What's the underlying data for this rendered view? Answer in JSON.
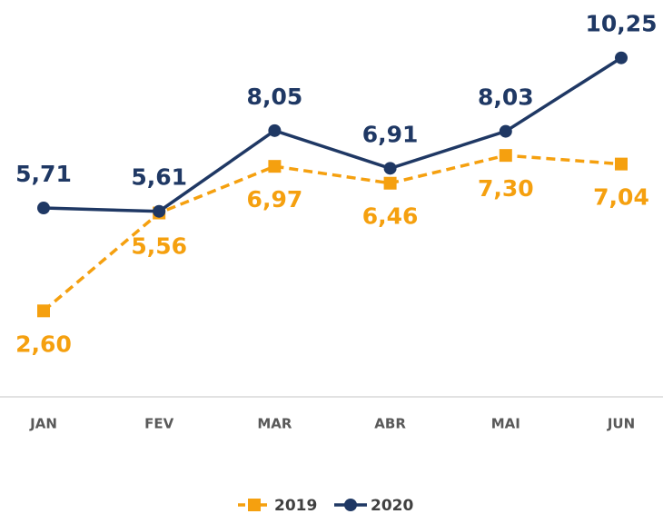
{
  "chart_data": {
    "type": "line",
    "categories": [
      "JAN",
      "FEV",
      "MAR",
      "ABR",
      "MAI",
      "JUN"
    ],
    "series": [
      {
        "name": "2019",
        "color": "#f5a00f",
        "dashed": true,
        "marker": "square",
        "values": [
          2.6,
          5.56,
          6.97,
          6.46,
          7.3,
          7.04
        ],
        "value_labels": [
          "2,60",
          "5,56",
          "6,97",
          "6,46",
          "7,30",
          "7,04"
        ],
        "label_position": "below"
      },
      {
        "name": "2020",
        "color": "#1f3864",
        "dashed": false,
        "marker": "circle",
        "values": [
          5.71,
          5.61,
          8.05,
          6.91,
          8.03,
          10.25
        ],
        "value_labels": [
          "5,71",
          "5,61",
          "8,05",
          "6,91",
          "8,03",
          "10,25"
        ],
        "label_position": "above"
      }
    ],
    "ylim": [
      0,
      12
    ],
    "legend": "bottom"
  }
}
